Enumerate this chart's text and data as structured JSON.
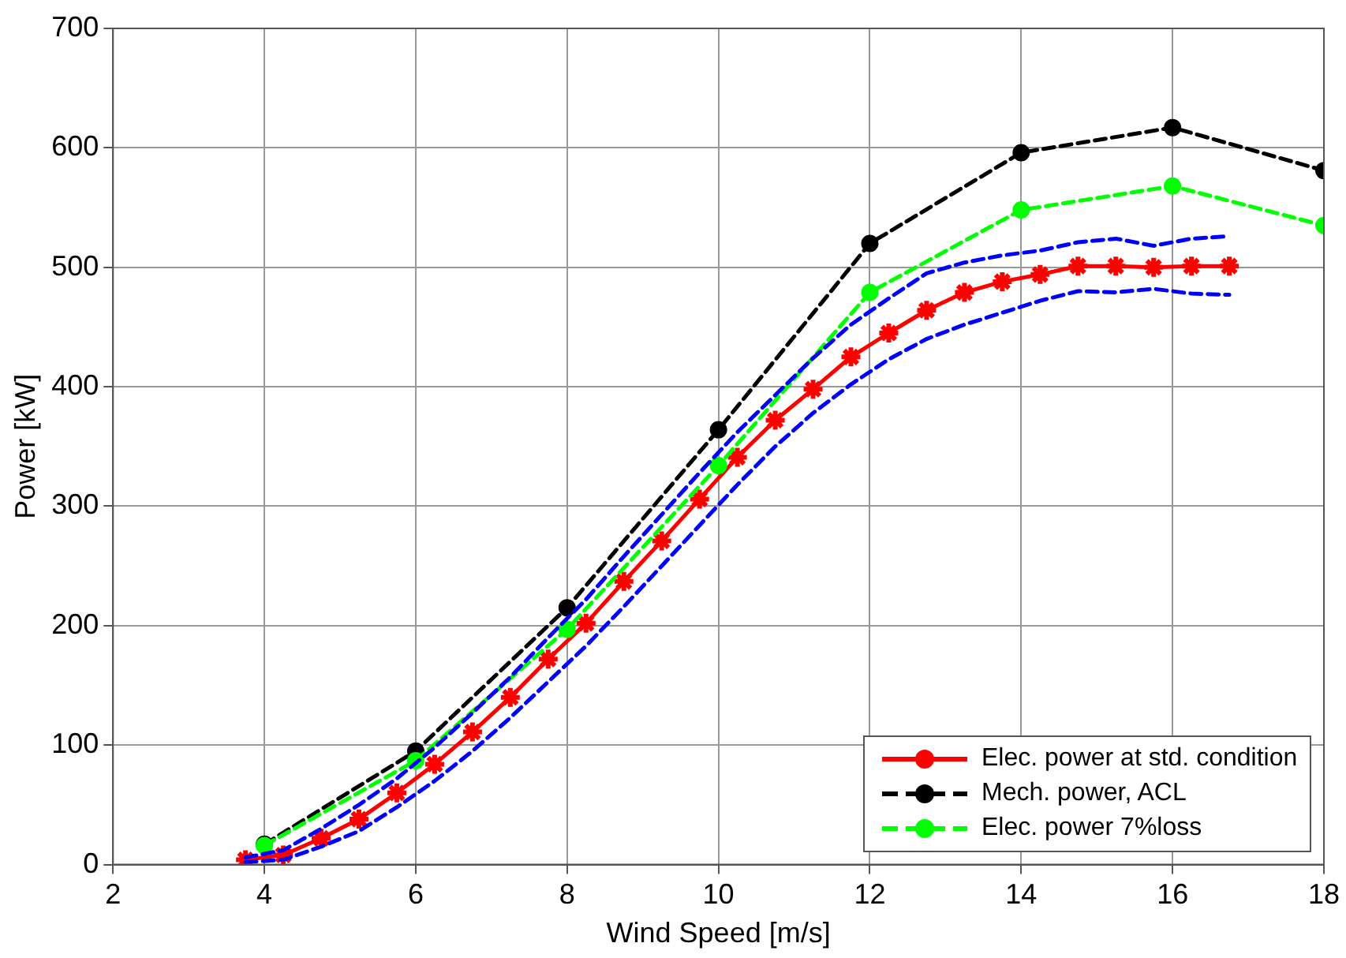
{
  "chart_data": {
    "type": "line",
    "xlabel": "Wind Speed [m/s]",
    "ylabel": "Power [kW]",
    "xlim": [
      2,
      18
    ],
    "xticks": [
      2,
      4,
      6,
      8,
      10,
      12,
      14,
      16,
      18
    ],
    "ylim": [
      0,
      700
    ],
    "yticks": [
      0,
      100,
      200,
      300,
      400,
      500,
      600,
      700
    ],
    "grid": true,
    "legend": "bottom right",
    "series": [
      {
        "name": "Elec. power at std. condition",
        "color": "#ff0000",
        "marker": "cross",
        "line_style": "solid",
        "x": [
          3.75,
          4.25,
          4.75,
          5.25,
          5.75,
          6.25,
          6.75,
          7.25,
          7.75,
          8.25,
          8.75,
          9.25,
          9.75,
          10.25,
          10.75,
          11.25,
          11.75,
          12.25,
          12.75,
          13.25,
          13.75,
          14.25,
          14.75,
          15.25,
          15.75,
          16.25,
          16.75
        ],
        "values": [
          4,
          8,
          22,
          38,
          60,
          84,
          111,
          140,
          172,
          202,
          237,
          271,
          306,
          341,
          372,
          398,
          425,
          445,
          464,
          479,
          488,
          494,
          501,
          501,
          500,
          501,
          501
        ]
      },
      {
        "color": "#0000ff",
        "marker": "none",
        "line_style": "dashed",
        "x": [
          3.75,
          4.25,
          4.75,
          5.25,
          5.75,
          6.25,
          6.75,
          7.25,
          7.75,
          8.25,
          8.75,
          9.25,
          9.75,
          10.25,
          10.75,
          11.25,
          11.75,
          12.25,
          12.75,
          13.25,
          13.75,
          14.25,
          14.75,
          15.25,
          15.75,
          16.25,
          16.75
        ],
        "values": [
          6,
          12,
          30,
          50,
          72,
          98,
          127,
          157,
          190,
          222,
          258,
          293,
          328,
          362,
          393,
          424,
          452,
          474,
          495,
          504,
          510,
          514,
          521,
          524,
          518,
          524,
          526
        ]
      },
      {
        "color": "#0000ff",
        "marker": "none",
        "line_style": "dashed",
        "x": [
          3.75,
          4.25,
          4.75,
          5.25,
          5.75,
          6.25,
          6.75,
          7.25,
          7.75,
          8.25,
          8.75,
          9.25,
          9.75,
          10.25,
          10.75,
          11.25,
          11.75,
          12.25,
          12.75,
          13.25,
          13.75,
          14.25,
          14.75,
          15.25,
          15.75,
          16.25,
          16.75
        ],
        "values": [
          2,
          4,
          15,
          28,
          48,
          70,
          95,
          123,
          153,
          183,
          216,
          250,
          284,
          318,
          350,
          378,
          402,
          423,
          440,
          452,
          462,
          472,
          480,
          479,
          482,
          478,
          477
        ]
      },
      {
        "name": "Mech. power, ACL",
        "color": "#000000",
        "marker": "circle",
        "line_style": "dashed",
        "x": [
          4,
          6,
          8,
          10,
          12,
          14,
          16,
          18
        ],
        "values": [
          17,
          95,
          215,
          364,
          520,
          596,
          617,
          581
        ]
      },
      {
        "name": "Elec. power 7%loss",
        "color": "#00ff00",
        "marker": "circle",
        "line_style": "dashed",
        "x": [
          4,
          6,
          8,
          10,
          12,
          14,
          16,
          18
        ],
        "values": [
          16,
          87,
          197,
          334,
          479,
          548,
          568,
          535
        ]
      }
    ]
  }
}
